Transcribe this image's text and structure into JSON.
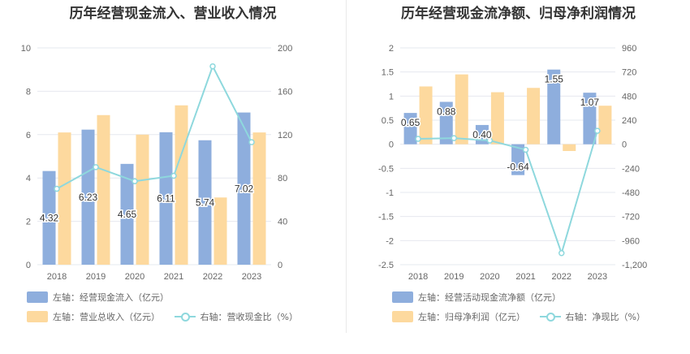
{
  "colors": {
    "bar_blue": "#8eaedd",
    "bar_orange": "#fdd99e",
    "line_cyan": "#8ed8dd",
    "grid": "#e6e8ef",
    "axis_text": "#666666"
  },
  "chart_data": [
    {
      "type": "bar",
      "title": "历年经营现金流入、营业收入情况",
      "categories": [
        "2018",
        "2019",
        "2020",
        "2021",
        "2022",
        "2023"
      ],
      "series": [
        {
          "name": "左轴：经营现金流入（亿元）",
          "axis": "left",
          "kind": "bar",
          "values": [
            4.32,
            6.23,
            4.65,
            6.11,
            5.74,
            7.02
          ],
          "labels": [
            "4.32",
            "6.23",
            "4.65",
            "6.11",
            "5.74",
            "7.02"
          ]
        },
        {
          "name": "左轴：营业总收入（亿元）",
          "axis": "left",
          "kind": "bar",
          "values": [
            6.1,
            6.9,
            6.0,
            7.35,
            3.1,
            6.1
          ]
        },
        {
          "name": "右轴：营收现金比（%）",
          "axis": "right",
          "kind": "line",
          "values": [
            70,
            90,
            77,
            82,
            183,
            113
          ]
        }
      ],
      "y_left": {
        "min": 0,
        "max": 10,
        "ticks": [
          "0",
          "2",
          "4",
          "6",
          "8",
          "10"
        ]
      },
      "y_right": {
        "min": 0,
        "max": 200,
        "ticks": [
          "0",
          "40",
          "80",
          "120",
          "160",
          "200"
        ]
      },
      "legend": [
        "左轴：经营现金流入（亿元）",
        "左轴：营业总收入（亿元）",
        "右轴：营收现金比（%）"
      ]
    },
    {
      "type": "bar",
      "title": "历年经营现金流净额、归母净利润情况",
      "categories": [
        "2018",
        "2019",
        "2020",
        "2021",
        "2022",
        "2023"
      ],
      "series": [
        {
          "name": "左轴：经营活动现金流净额（亿元）",
          "axis": "left",
          "kind": "bar",
          "values": [
            0.65,
            0.88,
            0.4,
            -0.64,
            1.55,
            1.07
          ],
          "labels": [
            "0.65",
            "0.88",
            "0.40",
            "-0.64",
            "1.55",
            "1.07"
          ]
        },
        {
          "name": "左轴：归母净利润（亿元）",
          "axis": "left",
          "kind": "bar",
          "values": [
            1.2,
            1.45,
            1.08,
            1.17,
            -0.14,
            0.8
          ]
        },
        {
          "name": "右轴：净现比（%）",
          "axis": "right",
          "kind": "line",
          "values": [
            54,
            61,
            37,
            -55,
            -1085,
            134
          ]
        }
      ],
      "y_left": {
        "min": -2.5,
        "max": 2,
        "ticks": [
          "-2.5",
          "-2",
          "-1.5",
          "-1",
          "-0.5",
          "0",
          "0.5",
          "1",
          "1.5",
          "2"
        ]
      },
      "y_right": {
        "min": -1200,
        "max": 960,
        "ticks": [
          "-1,200",
          "-960",
          "-720",
          "-480",
          "-240",
          "0",
          "240",
          "480",
          "720",
          "960"
        ]
      },
      "legend": [
        "左轴：经营活动现金流净额（亿元）",
        "左轴：归母净利润（亿元）",
        "右轴：净现比（%）"
      ]
    }
  ]
}
